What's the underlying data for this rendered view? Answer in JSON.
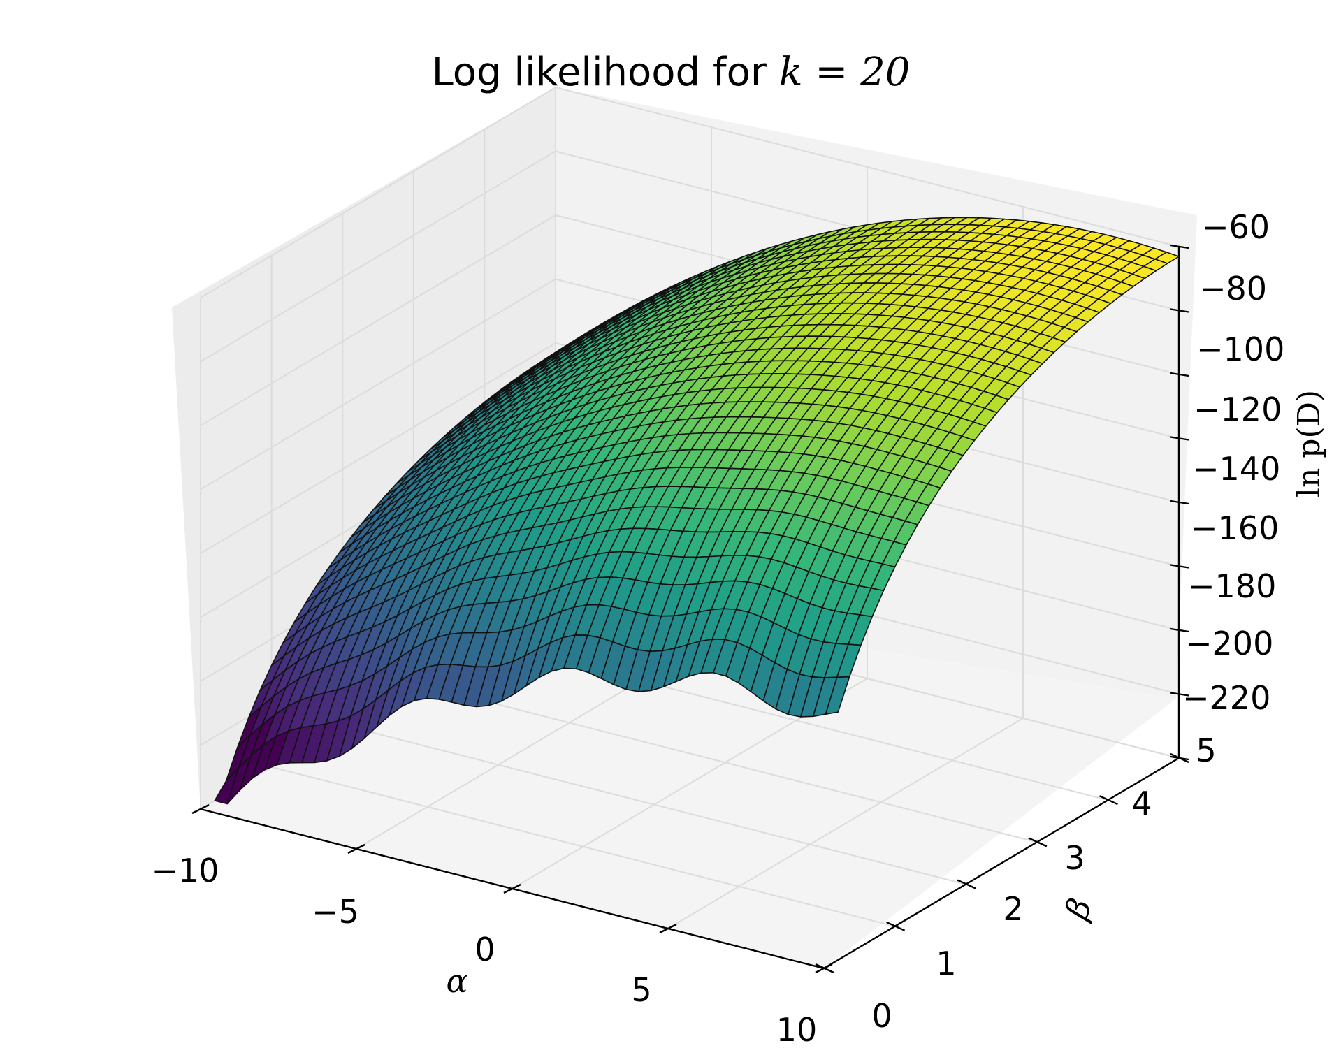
{
  "chart_data": {
    "type": "surface3d",
    "title": {
      "prefix": "Log likelihood for ",
      "math": "k = 20"
    },
    "xlabel": "α",
    "ylabel": "β",
    "zlabel": "ln p(D)",
    "x_ticks": [
      -10,
      -5,
      0,
      5,
      10
    ],
    "y_ticks": [
      0,
      1,
      2,
      3,
      4,
      5
    ],
    "z_ticks": [
      -220,
      -200,
      -180,
      -160,
      -140,
      -120,
      -100,
      -80,
      -60
    ],
    "x_tick_labels": [
      "−10",
      "−5",
      "0",
      "5",
      "10"
    ],
    "y_tick_labels": [
      "0",
      "1",
      "2",
      "3",
      "4",
      "5"
    ],
    "z_tick_labels": [
      "−220",
      "−200",
      "−180",
      "−160",
      "−140",
      "−120",
      "−100",
      "−80",
      "−60"
    ],
    "xlim": [
      -10,
      10
    ],
    "ylim": [
      0,
      5
    ],
    "zlim": [
      -220,
      -60
    ],
    "grid": true,
    "colormap": "viridis",
    "surface": {
      "alpha_range": [
        -10,
        10
      ],
      "beta_range": [
        0.2,
        5
      ],
      "grid_size": [
        50,
        30
      ],
      "description": "concave log-likelihood ridge peaking near alpha≈8, beta≈4.5 at about -62; drops steeply toward beta→0 (clipped below -220)",
      "peak": {
        "alpha": 8,
        "beta": 4.5,
        "lnp": -62
      }
    }
  }
}
